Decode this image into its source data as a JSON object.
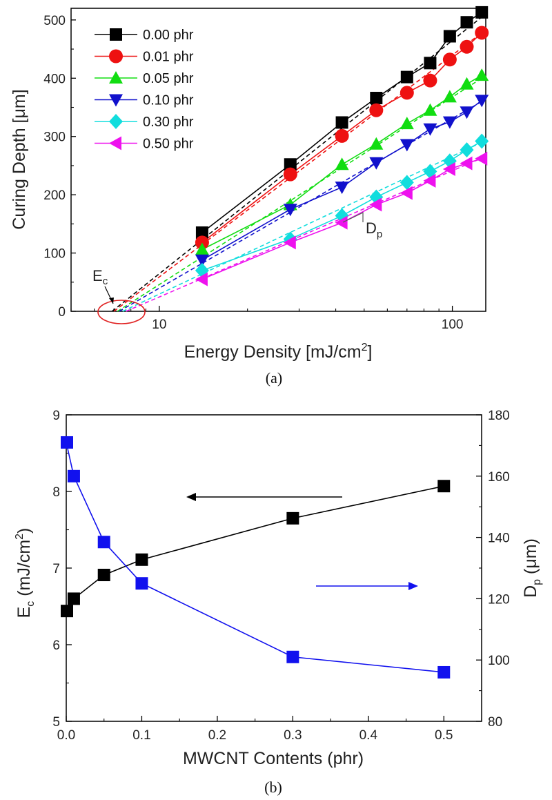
{
  "chart_data": [
    {
      "type": "line",
      "panel_label": "(a)",
      "xlabel_pre": "Energy Density [mJ/cm",
      "xlabel_sup": "2",
      "xlabel_post": "]",
      "ylabel": "Curing Depth [μm]",
      "xscale": "log",
      "xlim": [
        5,
        130
      ],
      "ylim": [
        0,
        520
      ],
      "xticks": [
        10,
        100
      ],
      "yticks": [
        0,
        100,
        200,
        300,
        400,
        500
      ],
      "legend_position": "top-left",
      "x": [
        14,
        28,
        42,
        55,
        70,
        84,
        98,
        112,
        126
      ],
      "series": [
        {
          "name": "0.00 phr",
          "color": "#000000",
          "marker": "square",
          "values": [
            135,
            252,
            324,
            366,
            402,
            426,
            472,
            496,
            513
          ],
          "fit_line": [
            [
              6.9,
              0
            ],
            [
              126,
              505
            ]
          ]
        },
        {
          "name": "0.01 phr",
          "color": "#ee1111",
          "marker": "circle",
          "values": [
            118,
            235,
            301,
            345,
            375,
            396,
            432,
            454,
            478
          ],
          "fit_line": [
            [
              7.0,
              0
            ],
            [
              126,
              478
            ]
          ]
        },
        {
          "name": "0.05 phr",
          "color": "#11dd11",
          "marker": "triangle-up",
          "values": [
            106,
            183,
            252,
            287,
            322,
            345,
            368,
            390,
            405
          ],
          "fit_line": [
            [
              7.2,
              0
            ],
            [
              126,
              400
            ]
          ]
        },
        {
          "name": "0.10 phr",
          "color": "#1111cc",
          "marker": "triangle-down",
          "values": [
            88,
            175,
            213,
            255,
            286,
            313,
            325,
            342,
            362
          ],
          "fit_line": [
            [
              7.3,
              0
            ],
            [
              126,
              360
            ]
          ]
        },
        {
          "name": "0.30 phr",
          "color": "#11dddd",
          "marker": "diamond",
          "values": [
            70,
            124,
            164,
            196,
            221,
            240,
            258,
            277,
            292
          ],
          "fit_line": [
            [
              7.5,
              0
            ],
            [
              126,
              290
            ]
          ]
        },
        {
          "name": "0.50 phr",
          "color": "#ee11ee",
          "marker": "triangle-left",
          "values": [
            55,
            118,
            152,
            183,
            203,
            224,
            244,
            254,
            262
          ],
          "fit_line": [
            [
              7.7,
              0
            ],
            [
              126,
              263
            ]
          ]
        }
      ],
      "annotations": [
        {
          "label": "E",
          "sub": "c",
          "target": "x-intercept ellipse"
        },
        {
          "label": "D",
          "sub": "p",
          "target": "slope triangle"
        }
      ]
    },
    {
      "type": "line",
      "panel_label": "(b)",
      "xlabel": "MWCNT Contents (phr)",
      "ylabel_left_pre": "E",
      "ylabel_left_sub": "c",
      "ylabel_left_mid": " (mJ/cm",
      "ylabel_left_sup": "2",
      "ylabel_left_post": ")",
      "ylabel_right_pre": "D",
      "ylabel_right_sub": "p",
      "ylabel_right_post": " (μm)",
      "xlim": [
        0,
        0.55
      ],
      "ylim_left": [
        5,
        9
      ],
      "ylim_right": [
        80,
        180
      ],
      "xticks": [
        "0.0",
        "0.1",
        "0.2",
        "0.3",
        "0.4",
        "0.5"
      ],
      "yticks_left": [
        "5",
        "6",
        "7",
        "8",
        "9"
      ],
      "yticks_right": [
        "80",
        "100",
        "120",
        "140",
        "160",
        "180"
      ],
      "x": [
        0.0,
        0.01,
        0.05,
        0.1,
        0.3,
        0.5
      ],
      "series": [
        {
          "name": "Ec",
          "axis": "left",
          "color": "#000000",
          "marker": "square",
          "values": [
            6.44,
            6.6,
            6.91,
            7.11,
            7.65,
            8.07
          ]
        },
        {
          "name": "Dp",
          "axis": "right",
          "color": "#1111ee",
          "marker": "square",
          "values": [
            171,
            160,
            138.5,
            125,
            101,
            96
          ]
        }
      ],
      "arrows": [
        {
          "series": "Ec",
          "direction": "left"
        },
        {
          "series": "Dp",
          "direction": "right"
        }
      ]
    }
  ]
}
